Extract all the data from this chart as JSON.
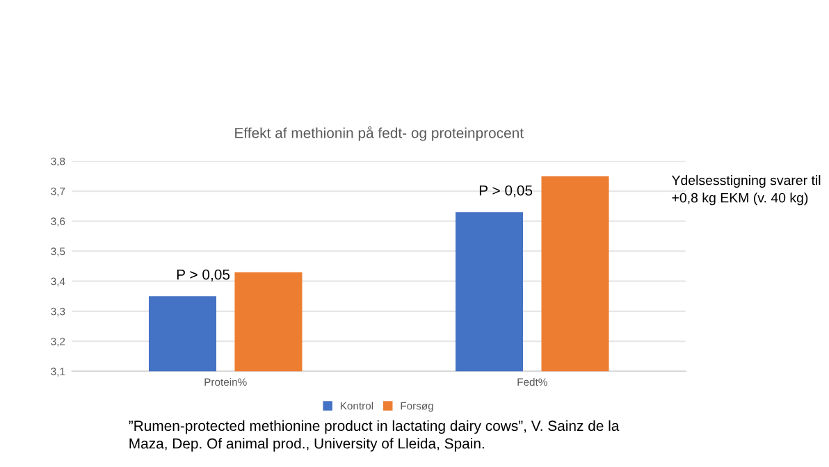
{
  "chart_data": {
    "type": "bar",
    "title": "Effekt af methionin på fedt- og proteinprocent",
    "categories": [
      "Protein%",
      "Fedt%"
    ],
    "series": [
      {
        "name": "Kontrol",
        "color": "#4472c4",
        "values": [
          3.35,
          3.63
        ]
      },
      {
        "name": "Forsøg",
        "color": "#ed7d31",
        "values": [
          3.43,
          3.75
        ]
      }
    ],
    "ylim": [
      3.1,
      3.8
    ],
    "yticks": [
      {
        "value": 3.1,
        "label": "3,1"
      },
      {
        "value": 3.2,
        "label": "3,2"
      },
      {
        "value": 3.3,
        "label": "3,3"
      },
      {
        "value": 3.4,
        "label": "3,4"
      },
      {
        "value": 3.5,
        "label": "3,5"
      },
      {
        "value": 3.6,
        "label": "3,6"
      },
      {
        "value": 3.7,
        "label": "3,7"
      },
      {
        "value": 3.8,
        "label": "3,8"
      }
    ],
    "grid": "y",
    "legend": "bottom",
    "annotations": [
      "P > 0,05",
      "P > 0,05",
      "Ydelsesstigning svarer til\n+0,8 kg EKM (v. 40 kg)",
      "”Rumen-protected methionine product in lactating dairy cows”, V. Sainz de la\nMaza, Dep. Of animal prod., University of Lleida, Spain."
    ]
  }
}
